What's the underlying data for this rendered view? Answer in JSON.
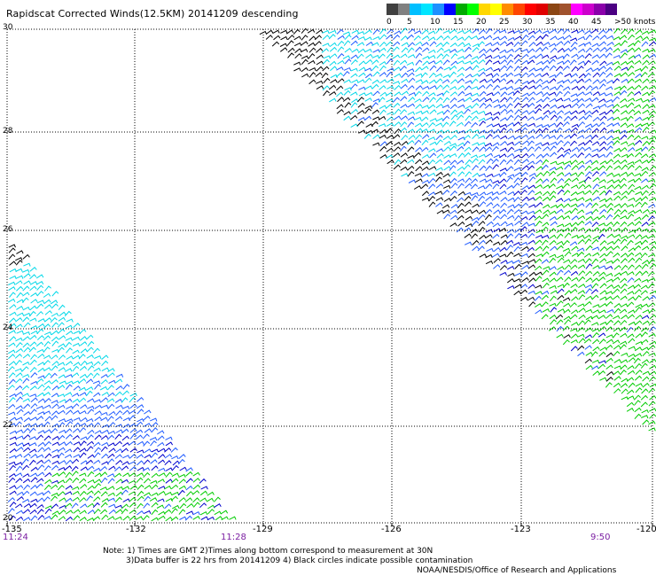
{
  "title": "Rapidscat Corrected Winds(12.5KM) 20141209 descending",
  "legend": {
    "colors": [
      "#404040",
      "#808080",
      "#00bfff",
      "#00e5ff",
      "#1e90ff",
      "#0000ff",
      "#00aa00",
      "#00ff00",
      "#ffd700",
      "#ffff00",
      "#ff8c00",
      "#ff4500",
      "#ff0000",
      "#e00000",
      "#8b4513",
      "#a0522d",
      "#ff00ff",
      "#cc00cc",
      "#8a00aa",
      "#4b0082"
    ],
    "ticks": [
      "0",
      "5",
      "10",
      "15",
      "20",
      "25",
      "30",
      "35",
      "40",
      "45",
      ">50 knots"
    ]
  },
  "lat_labels": [
    "30",
    "28",
    "26",
    "24",
    "22",
    "20"
  ],
  "lon_labels": [
    "-135",
    "-132",
    "-129",
    "-126",
    "-123",
    "-120"
  ],
  "time_labels": [
    "11:24",
    "11:28",
    "9:50"
  ],
  "notes": {
    "line1": "Note: 1) Times are GMT 2)Times along bottom correspond to measurement at 30N",
    "line2": "3)Data buffer is 22 hrs from 20141209 4) Black circles indicate possible contamination",
    "credit": "NOAA/NESDIS/Office of Research and Applications"
  },
  "wind_colors": {
    "black": "#000000",
    "cyan": "#00d8e8",
    "blue": "#1e5aff",
    "navy": "#0000cc",
    "green": "#00cc00"
  }
}
